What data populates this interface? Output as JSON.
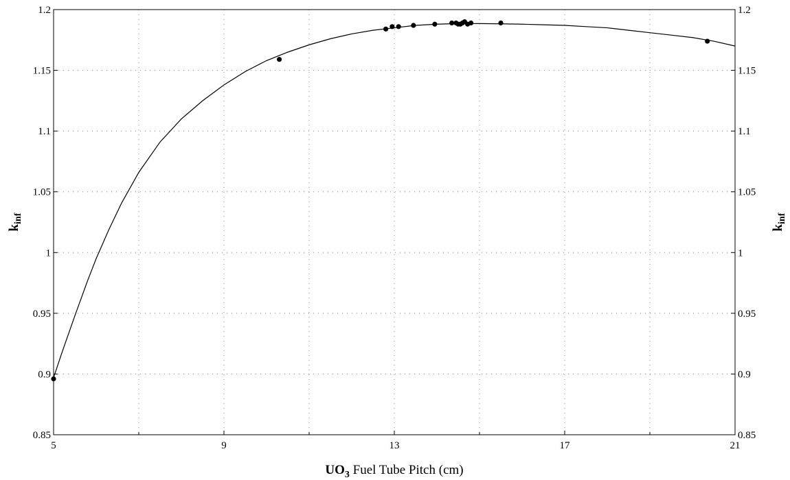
{
  "chart_data": {
    "type": "scatter",
    "title": "",
    "xlabel": {
      "main": "UO",
      "sub": "3",
      "rest": " Fuel Tube Pitch (cm)"
    },
    "ylabel": {
      "main": "k",
      "sub": "inf"
    },
    "xlim": [
      5,
      21
    ],
    "ylim": [
      0.85,
      1.2
    ],
    "x_ticks": [
      5,
      9,
      13,
      17,
      21
    ],
    "x_tick_labels": [
      "5",
      "9",
      "13",
      "17",
      "21"
    ],
    "x_minor_grid": [
      7,
      11,
      15,
      19
    ],
    "y_ticks": [
      0.85,
      0.9,
      0.95,
      1.0,
      1.05,
      1.1,
      1.15,
      1.2
    ],
    "y_tick_labels": [
      "0.85",
      "0.9",
      "0.95",
      "1",
      "1.05",
      "1.1",
      "1.15",
      "1.2"
    ],
    "y_right_tick_labels": [
      "0.85",
      "0.9",
      "0.95",
      "1",
      "1.05",
      "1.1",
      "1.15",
      "1.2"
    ],
    "grid": true,
    "series": [
      {
        "kind": "line",
        "x": [
          5.0,
          5.2,
          5.5,
          5.8,
          6.0,
          6.3,
          6.6,
          7.0,
          7.5,
          8.0,
          8.5,
          9.0,
          9.5,
          10.0,
          10.5,
          11.0,
          11.5,
          12.0,
          12.5,
          13.0,
          13.5,
          14.0,
          14.5,
          15.0,
          15.5,
          16.0,
          16.5,
          17.0,
          17.5,
          18.0,
          18.5,
          19.0,
          19.5,
          20.0,
          20.5,
          21.0
        ],
        "y": [
          0.897,
          0.918,
          0.948,
          0.977,
          0.995,
          1.019,
          1.041,
          1.066,
          1.091,
          1.11,
          1.125,
          1.138,
          1.149,
          1.158,
          1.165,
          1.171,
          1.176,
          1.18,
          1.183,
          1.185,
          1.187,
          1.188,
          1.1885,
          1.1885,
          1.1883,
          1.188,
          1.1875,
          1.187,
          1.186,
          1.185,
          1.183,
          1.181,
          1.179,
          1.177,
          1.174,
          1.17
        ]
      },
      {
        "kind": "points",
        "x": [
          5.0,
          10.3,
          12.8,
          12.95,
          13.1,
          13.45,
          13.95,
          14.35,
          14.45,
          14.5,
          14.55,
          14.6,
          14.65,
          14.72,
          14.8,
          15.5,
          20.35
        ],
        "y": [
          0.896,
          1.159,
          1.184,
          1.186,
          1.186,
          1.187,
          1.188,
          1.189,
          1.189,
          1.188,
          1.188,
          1.189,
          1.19,
          1.188,
          1.189,
          1.189,
          1.174
        ]
      }
    ]
  }
}
